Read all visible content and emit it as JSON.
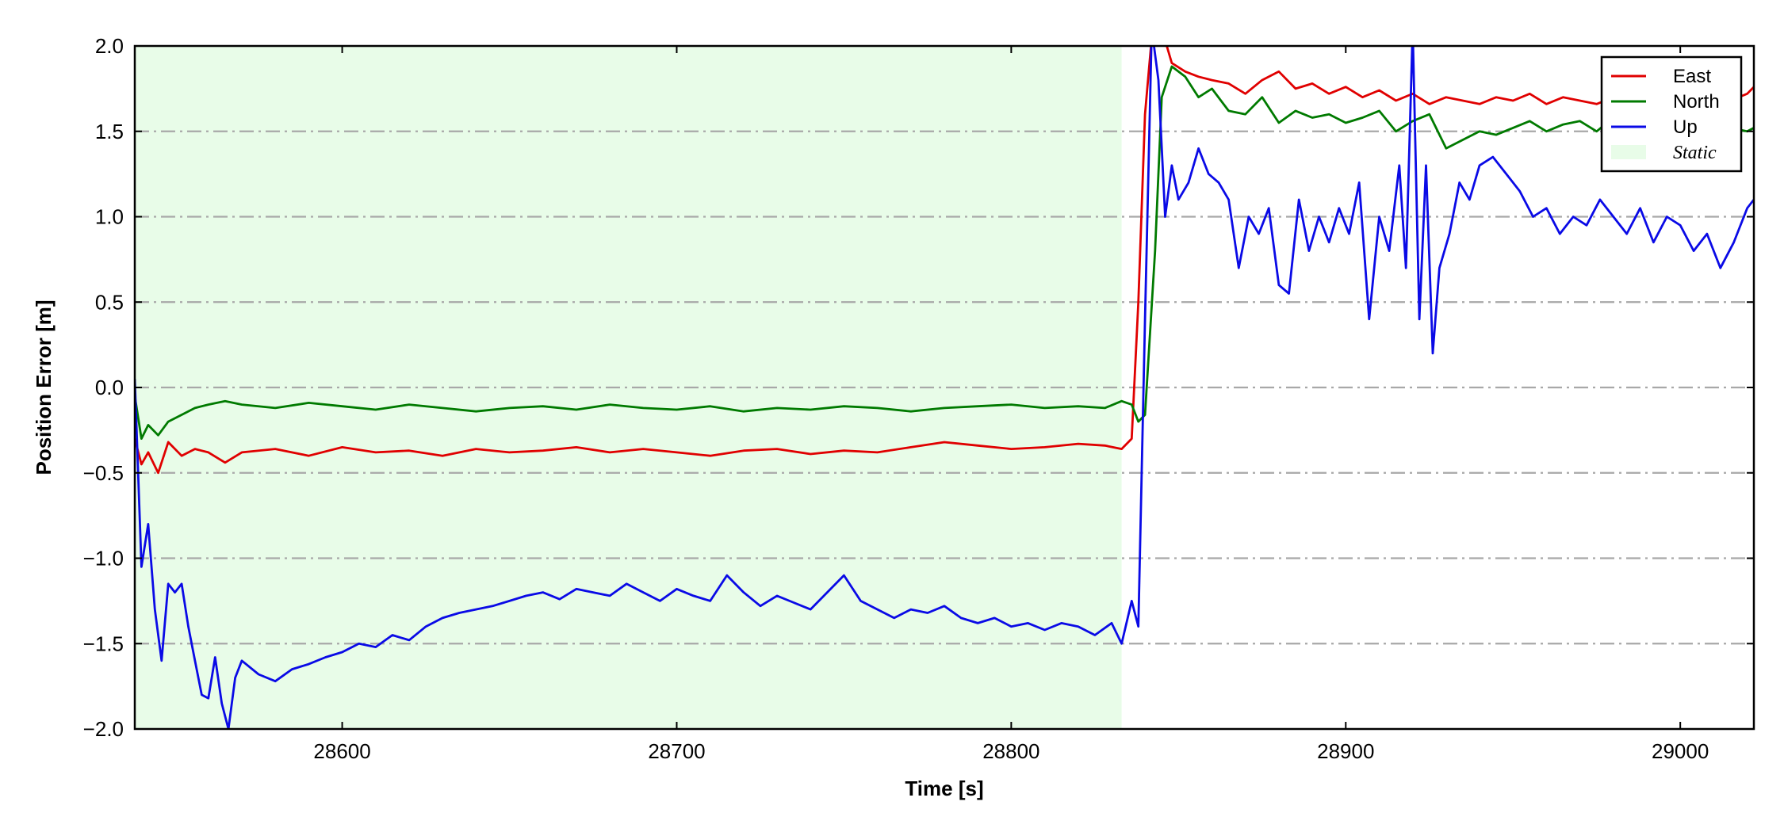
{
  "chart_data": {
    "type": "line",
    "title": "",
    "xlabel": "Time [s]",
    "ylabel": "Position Error [m]",
    "xlim": [
      28538,
      29022
    ],
    "ylim": [
      -2.0,
      2.0
    ],
    "x_ticks": [
      28600,
      28700,
      28800,
      28900,
      29000
    ],
    "x_tick_labels": [
      "28600",
      "28700",
      "28800",
      "28900",
      "29000"
    ],
    "y_ticks": [
      -2.0,
      -1.5,
      -1.0,
      -0.5,
      0.0,
      0.5,
      1.0,
      1.5,
      2.0
    ],
    "y_tick_labels": [
      "−2.0",
      "−1.5",
      "−1.0",
      "−0.5",
      "0.0",
      "0.5",
      "1.0",
      "1.5",
      "2.0"
    ],
    "grid": "horizontal dash-dot",
    "legend_position": "top-right",
    "static_region": {
      "label": "Static",
      "x_start": 28538,
      "x_end": 28833,
      "color": "#e8fce8"
    },
    "series": [
      {
        "name": "East",
        "color": "#e00000",
        "x": [
          28538,
          28540,
          28542,
          28545,
          28548,
          28552,
          28556,
          28560,
          28565,
          28570,
          28580,
          28590,
          28600,
          28610,
          28620,
          28630,
          28640,
          28650,
          28660,
          28670,
          28680,
          28690,
          28700,
          28710,
          28720,
          28730,
          28740,
          28750,
          28760,
          28770,
          28780,
          28790,
          28800,
          28810,
          28820,
          28828,
          28833,
          28836,
          28838,
          28840,
          28842,
          28845,
          28848,
          28852,
          28856,
          28860,
          28865,
          28870,
          28875,
          28880,
          28885,
          28890,
          28895,
          28900,
          28905,
          28910,
          28915,
          28920,
          28925,
          28930,
          28935,
          28940,
          28945,
          28950,
          28955,
          28960,
          28965,
          28970,
          28975,
          28980,
          28985,
          28990,
          28995,
          29000,
          29005,
          29010,
          29015,
          29020,
          29022
        ],
        "values": [
          -0.3,
          -0.45,
          -0.38,
          -0.5,
          -0.32,
          -0.4,
          -0.36,
          -0.38,
          -0.44,
          -0.38,
          -0.36,
          -0.4,
          -0.35,
          -0.38,
          -0.37,
          -0.4,
          -0.36,
          -0.38,
          -0.37,
          -0.35,
          -0.38,
          -0.36,
          -0.38,
          -0.4,
          -0.37,
          -0.36,
          -0.39,
          -0.37,
          -0.38,
          -0.35,
          -0.32,
          -0.34,
          -0.36,
          -0.35,
          -0.33,
          -0.34,
          -0.36,
          -0.3,
          0.5,
          1.6,
          2.05,
          2.1,
          1.9,
          1.85,
          1.82,
          1.8,
          1.78,
          1.72,
          1.8,
          1.85,
          1.75,
          1.78,
          1.72,
          1.76,
          1.7,
          1.74,
          1.68,
          1.72,
          1.66,
          1.7,
          1.68,
          1.66,
          1.7,
          1.68,
          1.72,
          1.66,
          1.7,
          1.68,
          1.66,
          1.7,
          1.66,
          1.68,
          1.64,
          1.66,
          1.7,
          1.64,
          1.68,
          1.72,
          1.76
        ]
      },
      {
        "name": "North",
        "color": "#007a00",
        "x": [
          28538,
          28540,
          28542,
          28545,
          28548,
          28552,
          28556,
          28560,
          28565,
          28570,
          28580,
          28590,
          28600,
          28610,
          28620,
          28630,
          28640,
          28650,
          28660,
          28670,
          28680,
          28690,
          28700,
          28710,
          28720,
          28730,
          28740,
          28750,
          28760,
          28770,
          28780,
          28790,
          28800,
          28810,
          28820,
          28828,
          28833,
          28836,
          28838,
          28840,
          28843,
          28845,
          28848,
          28852,
          28856,
          28860,
          28865,
          28870,
          28875,
          28880,
          28885,
          28890,
          28895,
          28900,
          28905,
          28910,
          28915,
          28920,
          28925,
          28930,
          28935,
          28940,
          28945,
          28950,
          28955,
          28960,
          28965,
          28970,
          28975,
          28980,
          28985,
          28990,
          28995,
          29000,
          29005,
          29010,
          29015,
          29020,
          29022
        ],
        "values": [
          -0.05,
          -0.3,
          -0.22,
          -0.28,
          -0.2,
          -0.16,
          -0.12,
          -0.1,
          -0.08,
          -0.1,
          -0.12,
          -0.09,
          -0.11,
          -0.13,
          -0.1,
          -0.12,
          -0.14,
          -0.12,
          -0.11,
          -0.13,
          -0.1,
          -0.12,
          -0.13,
          -0.11,
          -0.14,
          -0.12,
          -0.13,
          -0.11,
          -0.12,
          -0.14,
          -0.12,
          -0.11,
          -0.1,
          -0.12,
          -0.11,
          -0.12,
          -0.08,
          -0.1,
          -0.2,
          -0.16,
          0.8,
          1.7,
          1.88,
          1.82,
          1.7,
          1.75,
          1.62,
          1.6,
          1.7,
          1.55,
          1.62,
          1.58,
          1.6,
          1.55,
          1.58,
          1.62,
          1.5,
          1.56,
          1.6,
          1.4,
          1.45,
          1.5,
          1.48,
          1.52,
          1.56,
          1.5,
          1.54,
          1.56,
          1.5,
          1.58,
          1.54,
          1.52,
          1.55,
          1.5,
          1.54,
          1.56,
          1.52,
          1.5,
          1.52
        ]
      },
      {
        "name": "Up",
        "color": "#0a0ae6",
        "x": [
          28538,
          28540,
          28542,
          28544,
          28546,
          28548,
          28550,
          28552,
          28554,
          28556,
          28558,
          28560,
          28562,
          28564,
          28566,
          28568,
          28570,
          28575,
          28580,
          28585,
          28590,
          28595,
          28600,
          28605,
          28610,
          28615,
          28620,
          28625,
          28630,
          28635,
          28640,
          28645,
          28650,
          28655,
          28660,
          28665,
          28670,
          28675,
          28680,
          28685,
          28690,
          28695,
          28700,
          28705,
          28710,
          28715,
          28720,
          28725,
          28730,
          28735,
          28740,
          28745,
          28750,
          28755,
          28760,
          28765,
          28770,
          28775,
          28780,
          28785,
          28790,
          28795,
          28800,
          28805,
          28810,
          28815,
          28820,
          28825,
          28830,
          28833,
          28836,
          28838,
          28840,
          28842,
          28844,
          28846,
          28848,
          28850,
          28853,
          28856,
          28859,
          28862,
          28865,
          28868,
          28871,
          28874,
          28877,
          28880,
          28883,
          28886,
          28889,
          28892,
          28895,
          28898,
          28901,
          28904,
          28907,
          28910,
          28913,
          28916,
          28918,
          28920,
          28922,
          28924,
          28926,
          28928,
          28931,
          28934,
          28937,
          28940,
          28944,
          28948,
          28952,
          28956,
          28960,
          28964,
          28968,
          28972,
          28976,
          28980,
          28984,
          28988,
          28992,
          28996,
          29000,
          29004,
          29008,
          29012,
          29016,
          29020,
          29022
        ],
        "values": [
          0.05,
          -1.05,
          -0.8,
          -1.3,
          -1.6,
          -1.15,
          -1.2,
          -1.15,
          -1.4,
          -1.6,
          -1.8,
          -1.82,
          -1.58,
          -1.85,
          -2.0,
          -1.7,
          -1.6,
          -1.68,
          -1.72,
          -1.65,
          -1.62,
          -1.58,
          -1.55,
          -1.5,
          -1.52,
          -1.45,
          -1.48,
          -1.4,
          -1.35,
          -1.32,
          -1.3,
          -1.28,
          -1.25,
          -1.22,
          -1.2,
          -1.24,
          -1.18,
          -1.2,
          -1.22,
          -1.15,
          -1.2,
          -1.25,
          -1.18,
          -1.22,
          -1.25,
          -1.1,
          -1.2,
          -1.28,
          -1.22,
          -1.26,
          -1.3,
          -1.2,
          -1.1,
          -1.25,
          -1.3,
          -1.35,
          -1.3,
          -1.32,
          -1.28,
          -1.35,
          -1.38,
          -1.35,
          -1.4,
          -1.38,
          -1.42,
          -1.38,
          -1.4,
          -1.45,
          -1.38,
          -1.5,
          -1.25,
          -1.4,
          0.4,
          2.1,
          1.8,
          1.0,
          1.3,
          1.1,
          1.2,
          1.4,
          1.25,
          1.2,
          1.1,
          0.7,
          1.0,
          0.9,
          1.05,
          0.6,
          0.55,
          1.1,
          0.8,
          1.0,
          0.85,
          1.05,
          0.9,
          1.2,
          0.4,
          1.0,
          0.8,
          1.3,
          0.7,
          2.1,
          0.4,
          1.3,
          0.2,
          0.7,
          0.9,
          1.2,
          1.1,
          1.3,
          1.35,
          1.25,
          1.15,
          1.0,
          1.05,
          0.9,
          1.0,
          0.95,
          1.1,
          1.0,
          0.9,
          1.05,
          0.85,
          1.0,
          0.95,
          0.8,
          0.9,
          0.7,
          0.85,
          1.05,
          1.1
        ]
      }
    ]
  }
}
